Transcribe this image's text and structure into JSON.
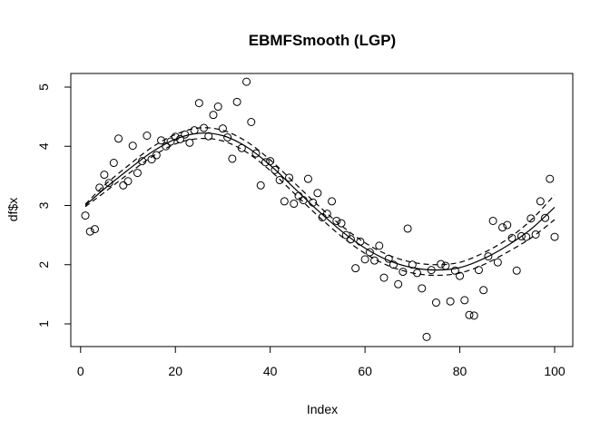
{
  "chart_data": {
    "type": "scatter",
    "title": "EBMFSmooth (LGP)",
    "xlabel": "Index",
    "ylabel": "df$x",
    "xlim": [
      1,
      100
    ],
    "ylim": [
      0.78,
      5.1
    ],
    "xticks": [
      "0",
      "20",
      "40",
      "60",
      "80",
      "100"
    ],
    "yticks": [
      "1",
      "2",
      "3",
      "4",
      "5"
    ],
    "grid": false,
    "legend": "none",
    "points": {
      "x": [
        1,
        2,
        3,
        4,
        5,
        6,
        7,
        8,
        9,
        10,
        11,
        12,
        13,
        14,
        15,
        16,
        17,
        18,
        19,
        20,
        21,
        22,
        23,
        24,
        25,
        26,
        27,
        28,
        29,
        30,
        31,
        32,
        33,
        34,
        35,
        36,
        37,
        38,
        39,
        40,
        41,
        42,
        43,
        44,
        45,
        46,
        47,
        48,
        49,
        50,
        51,
        52,
        53,
        54,
        55,
        56,
        57,
        58,
        59,
        60,
        61,
        62,
        63,
        64,
        65,
        66,
        67,
        68,
        69,
        70,
        71,
        72,
        73,
        74,
        75,
        76,
        77,
        78,
        79,
        80,
        81,
        82,
        83,
        84,
        85,
        86,
        87,
        88,
        89,
        90,
        91,
        92,
        93,
        94,
        95,
        96,
        97,
        98,
        99,
        100
      ],
      "y": [
        2.83,
        2.56,
        2.6,
        3.3,
        3.52,
        3.38,
        3.72,
        4.13,
        3.34,
        3.41,
        4.01,
        3.55,
        3.75,
        4.18,
        3.78,
        3.85,
        4.1,
        4.0,
        4.08,
        4.16,
        4.12,
        4.2,
        4.06,
        4.27,
        4.73,
        4.31,
        4.17,
        4.53,
        4.67,
        4.3,
        4.15,
        3.79,
        4.75,
        3.97,
        5.09,
        4.41,
        3.88,
        3.34,
        3.73,
        3.75,
        3.6,
        3.43,
        3.07,
        3.47,
        3.03,
        3.16,
        3.09,
        3.45,
        3.05,
        3.21,
        2.8,
        2.86,
        3.07,
        2.74,
        2.7,
        2.5,
        2.43,
        1.94,
        2.39,
        2.09,
        2.21,
        2.07,
        2.32,
        1.78,
        2.1,
        2.0,
        1.67,
        1.88,
        2.61,
        2.0,
        1.86,
        1.6,
        0.78,
        1.91,
        1.36,
        2.01,
        1.98,
        1.38,
        1.9,
        1.81,
        1.4,
        1.15,
        1.14,
        1.91,
        1.57,
        2.14,
        2.74,
        2.04,
        2.63,
        2.67,
        2.45,
        1.9,
        2.48,
        2.47,
        2.78,
        2.51,
        3.07,
        2.79,
        3.45,
        2.47
      ]
    },
    "series": [
      {
        "style": "solid",
        "x": [
          1,
          5,
          10,
          15,
          20,
          25,
          30,
          35,
          40,
          45,
          50,
          55,
          60,
          65,
          70,
          75,
          80,
          85,
          90,
          95,
          100
        ],
        "y": [
          3.0,
          3.28,
          3.6,
          3.9,
          4.12,
          4.22,
          4.18,
          3.99,
          3.68,
          3.3,
          2.92,
          2.57,
          2.28,
          2.07,
          1.95,
          1.91,
          1.95,
          2.1,
          2.32,
          2.6,
          2.97
        ]
      },
      {
        "style": "dashed",
        "x": [
          1,
          5,
          10,
          15,
          20,
          25,
          30,
          35,
          40,
          45,
          50,
          55,
          60,
          65,
          70,
          75,
          80,
          85,
          90,
          95,
          100
        ],
        "y": [
          3.02,
          3.34,
          3.67,
          3.98,
          4.2,
          4.31,
          4.27,
          4.08,
          3.77,
          3.39,
          3.01,
          2.66,
          2.37,
          2.16,
          2.04,
          2.0,
          2.04,
          2.2,
          2.43,
          2.75,
          3.18
        ]
      },
      {
        "style": "dashed",
        "x": [
          1,
          5,
          10,
          15,
          20,
          25,
          30,
          35,
          40,
          45,
          50,
          55,
          60,
          65,
          70,
          75,
          80,
          85,
          90,
          95,
          100
        ],
        "y": [
          2.98,
          3.22,
          3.53,
          3.82,
          4.04,
          4.13,
          4.09,
          3.9,
          3.59,
          3.21,
          2.83,
          2.48,
          2.19,
          1.98,
          1.86,
          1.82,
          1.86,
          2.0,
          2.21,
          2.45,
          2.76
        ]
      }
    ]
  }
}
